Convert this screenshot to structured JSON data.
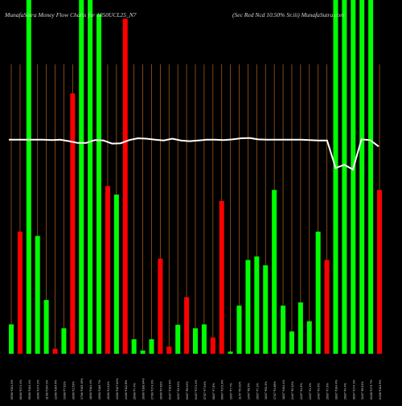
{
  "title_left": "MunafaSutra  Money Flow  Charts for 1050UCL25_N7",
  "title_right": "(Sec Red Ncd 10.50% Sr.iii) MunafaSutra.com",
  "colors": {
    "background": "#000000",
    "up": "#00ff00",
    "down": "#ff0000",
    "price_line": "#ffffff",
    "grid": "#a0581a",
    "text": "#d8d8d8"
  },
  "chart_data": {
    "type": "bar",
    "title": "MunafaSutra  Money Flow  Charts for 1050UCL25_N7",
    "subtitle": "(Sec Red Ncd 10.50% Sr.iii) MunafaSutra.com",
    "grid": true,
    "ylim": [
      0,
      100
    ],
    "bar_colors": [
      "green",
      "red",
      "green",
      "green",
      "green",
      "red",
      "green",
      "red",
      "green",
      "green",
      "green",
      "red",
      "green",
      "red",
      "green",
      "green",
      "green",
      "red",
      "red",
      "green",
      "red",
      "green",
      "green",
      "red",
      "red",
      "green",
      "green",
      "green",
      "green",
      "green",
      "green",
      "green",
      "green",
      "green",
      "green",
      "green",
      "red",
      "green",
      "green",
      "green",
      "green",
      "green",
      "red"
    ],
    "values": [
      8.3,
      34.5,
      100,
      33.3,
      15.2,
      1.4,
      7.2,
      73.6,
      100,
      100,
      96.0,
      47.4,
      45.0,
      94.7,
      4.1,
      0.9,
      4.1,
      26.9,
      2.0,
      8.2,
      16.0,
      7.2,
      8.3,
      4.6,
      43.2,
      0.6,
      13.6,
      26.5,
      27.5,
      25.0,
      46.3,
      13.6,
      6.3,
      14.5,
      9.2,
      34.5,
      26.5,
      100,
      100,
      100,
      100,
      100,
      46.3
    ],
    "price_line": [
      60.5,
      60.5,
      60.5,
      60.5,
      60.5,
      60.4,
      60.5,
      60.1,
      59.6,
      59.6,
      60.4,
      60.3,
      59.4,
      59.5,
      60.4,
      60.9,
      60.8,
      60.5,
      60.3,
      60.8,
      60.3,
      60.1,
      60.3,
      60.5,
      60.5,
      60.4,
      60.6,
      60.9,
      61.0,
      60.6,
      60.5,
      60.5,
      60.5,
      60.5,
      60.5,
      60.4,
      60.3,
      60.3,
      52.5,
      53.4,
      52.1,
      60.6,
      60.4,
      58.6
    ],
    "x_labels": [
      "05/06 ₹104.3%",
      "06/06 ₹174.4%",
      "09/06 ₹104.4%",
      "10/06 ₹174.2%",
      "11/06 ₹104.1%",
      "12/06 ₹104.5%",
      "13/06 ₹7.52%",
      "16/06 ₹1.53%",
      "17/06 ₹105.19%",
      "18/06 ₹104.4%",
      "19/06 ₹166.7%",
      "20/06 ₹1.61%",
      "23/06 ₹107.62%",
      "24/06 ₹112.8%",
      "25/06 ₹7.4%",
      "26/06 ₹106.94%",
      "27/06 ₹174.3%",
      "30/06 ₹4.53%",
      "01/07 ₹103.9%",
      "02/07 ₹3.54%",
      "03/07 ₹8.04%",
      "04/07 ₹174.4%",
      "07/07 ₹7.04%",
      "08/07 ₹7.8%",
      "09/07 ₹172.9%",
      "10/07 ₹7.7%",
      "11/07 ₹0.01%",
      "14/07 ₹8.5%",
      "15/07 ₹7.1%",
      "16/07 ₹53.3%",
      "17/07 ₹1.66%",
      "18/07 ₹104.4%",
      "21/07 ₹0.02%",
      "22/07 ₹4.5%",
      "23/07 ₹1.1%",
      "24/07 ₹4.5%",
      "25/07 ₹7.5%",
      "28/07 ₹104.4%",
      "29/07 ₹4.4%",
      "30/07 ₹174.1%",
      "31/07 ₹8.61%",
      "01/08 ₹173.7%",
      "04/08 ₹103.9%"
    ]
  }
}
